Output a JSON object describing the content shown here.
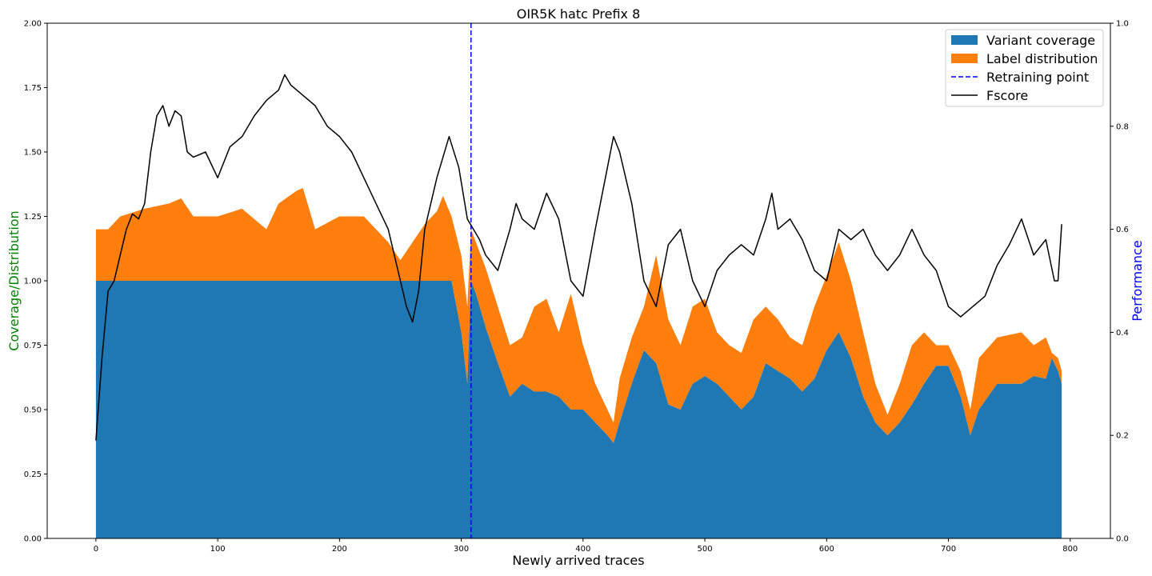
{
  "chart_data": {
    "type": "area",
    "title": "OIR5K hatc Prefix 8",
    "xlabel": "Newly arrived traces",
    "ylabel_left": "Coverage/Distribution",
    "ylabel_right": "Performance",
    "ylabel_left_color": "#008000",
    "ylabel_right_color": "#0000ff",
    "xlim": [
      -40,
      833
    ],
    "ylim_left": [
      0,
      2
    ],
    "ylim_right": [
      0,
      1
    ],
    "x_ticks": [
      "0",
      "100",
      "200",
      "300",
      "400",
      "500",
      "600",
      "700",
      "800"
    ],
    "y_ticks_left": [
      "0.00",
      "0.25",
      "0.50",
      "0.75",
      "1.00",
      "1.25",
      "1.50",
      "1.75",
      "2.00"
    ],
    "y_ticks_right": [
      "0.0",
      "0.2",
      "0.4",
      "0.6",
      "0.8",
      "1.0"
    ],
    "grid": false,
    "legend_position": "top-right",
    "retraining_point": 308,
    "series": [
      {
        "name": "Variant coverage",
        "kind": "area",
        "color": "#1f77b4",
        "x": [
          0,
          20,
          60,
          100,
          150,
          200,
          250,
          292,
          300,
          305,
          308,
          312,
          320,
          330,
          340,
          350,
          360,
          370,
          380,
          390,
          400,
          410,
          420,
          425,
          430,
          440,
          450,
          460,
          470,
          480,
          490,
          500,
          510,
          520,
          530,
          540,
          550,
          560,
          570,
          580,
          590,
          600,
          610,
          620,
          630,
          640,
          650,
          660,
          670,
          680,
          690,
          700,
          710,
          718,
          725,
          740,
          760,
          770,
          780,
          785,
          790,
          793
        ],
        "values": [
          1.0,
          1.0,
          1.0,
          1.0,
          1.0,
          1.0,
          1.0,
          1.0,
          0.8,
          0.6,
          1.0,
          0.95,
          0.82,
          0.68,
          0.55,
          0.6,
          0.57,
          0.57,
          0.55,
          0.5,
          0.5,
          0.45,
          0.4,
          0.37,
          0.45,
          0.6,
          0.73,
          0.68,
          0.52,
          0.5,
          0.6,
          0.63,
          0.6,
          0.55,
          0.5,
          0.55,
          0.68,
          0.65,
          0.62,
          0.57,
          0.62,
          0.73,
          0.8,
          0.7,
          0.55,
          0.45,
          0.4,
          0.45,
          0.52,
          0.6,
          0.67,
          0.67,
          0.55,
          0.4,
          0.5,
          0.6,
          0.6,
          0.63,
          0.62,
          0.7,
          0.65,
          0.6
        ]
      },
      {
        "name": "Label distribution",
        "kind": "area",
        "color": "#ff7f0e",
        "x": [
          0,
          10,
          20,
          40,
          60,
          70,
          80,
          100,
          120,
          140,
          150,
          165,
          170,
          180,
          200,
          220,
          240,
          250,
          260,
          270,
          280,
          285,
          292,
          300,
          305,
          308,
          312,
          320,
          330,
          340,
          350,
          360,
          370,
          380,
          390,
          400,
          410,
          420,
          425,
          430,
          440,
          450,
          460,
          470,
          480,
          490,
          500,
          510,
          520,
          530,
          540,
          550,
          560,
          570,
          580,
          590,
          600,
          610,
          620,
          630,
          640,
          650,
          660,
          670,
          680,
          690,
          700,
          710,
          718,
          725,
          740,
          760,
          770,
          780,
          785,
          790,
          793
        ],
        "values": [
          1.2,
          1.2,
          1.25,
          1.28,
          1.3,
          1.32,
          1.25,
          1.25,
          1.28,
          1.2,
          1.3,
          1.35,
          1.36,
          1.2,
          1.25,
          1.25,
          1.15,
          1.08,
          1.15,
          1.22,
          1.27,
          1.33,
          1.25,
          1.1,
          0.9,
          1.2,
          1.15,
          1.05,
          0.9,
          0.75,
          0.78,
          0.9,
          0.93,
          0.8,
          0.95,
          0.75,
          0.6,
          0.5,
          0.45,
          0.62,
          0.78,
          0.9,
          1.1,
          0.85,
          0.75,
          0.9,
          0.93,
          0.8,
          0.75,
          0.72,
          0.85,
          0.9,
          0.85,
          0.78,
          0.75,
          0.9,
          1.02,
          1.15,
          1.0,
          0.8,
          0.6,
          0.48,
          0.6,
          0.75,
          0.8,
          0.75,
          0.75,
          0.65,
          0.5,
          0.7,
          0.78,
          0.8,
          0.75,
          0.78,
          0.72,
          0.7,
          0.65
        ]
      },
      {
        "name": "Fscore",
        "kind": "line",
        "color": "#000000",
        "axis": "right",
        "x": [
          0,
          5,
          10,
          15,
          20,
          25,
          30,
          35,
          40,
          45,
          50,
          55,
          60,
          65,
          70,
          75,
          80,
          90,
          100,
          110,
          120,
          130,
          140,
          150,
          155,
          160,
          170,
          180,
          190,
          200,
          210,
          220,
          230,
          240,
          245,
          250,
          255,
          260,
          265,
          270,
          280,
          290,
          298,
          305,
          310,
          315,
          320,
          330,
          340,
          345,
          350,
          360,
          370,
          380,
          390,
          400,
          410,
          420,
          425,
          430,
          440,
          450,
          460,
          470,
          480,
          490,
          500,
          510,
          520,
          530,
          540,
          550,
          555,
          560,
          570,
          580,
          590,
          600,
          605,
          610,
          620,
          630,
          640,
          650,
          660,
          670,
          680,
          690,
          700,
          710,
          720,
          730,
          740,
          750,
          760,
          770,
          780,
          787,
          790,
          793
        ],
        "values": [
          0.19,
          0.35,
          0.48,
          0.5,
          0.55,
          0.6,
          0.63,
          0.62,
          0.65,
          0.75,
          0.82,
          0.84,
          0.8,
          0.83,
          0.82,
          0.75,
          0.74,
          0.75,
          0.7,
          0.76,
          0.78,
          0.82,
          0.85,
          0.87,
          0.9,
          0.88,
          0.86,
          0.84,
          0.8,
          0.78,
          0.75,
          0.7,
          0.65,
          0.6,
          0.55,
          0.5,
          0.45,
          0.42,
          0.48,
          0.6,
          0.7,
          0.78,
          0.72,
          0.62,
          0.6,
          0.58,
          0.55,
          0.52,
          0.6,
          0.65,
          0.62,
          0.6,
          0.67,
          0.62,
          0.5,
          0.47,
          0.6,
          0.72,
          0.78,
          0.75,
          0.65,
          0.5,
          0.45,
          0.57,
          0.6,
          0.5,
          0.45,
          0.52,
          0.55,
          0.57,
          0.55,
          0.62,
          0.67,
          0.6,
          0.62,
          0.58,
          0.52,
          0.5,
          0.55,
          0.6,
          0.58,
          0.6,
          0.55,
          0.52,
          0.55,
          0.6,
          0.55,
          0.52,
          0.45,
          0.43,
          0.45,
          0.47,
          0.53,
          0.57,
          0.62,
          0.55,
          0.58,
          0.5,
          0.5,
          0.61
        ]
      },
      {
        "name": "Retraining point",
        "kind": "vline",
        "color": "#0000ff"
      }
    ]
  }
}
